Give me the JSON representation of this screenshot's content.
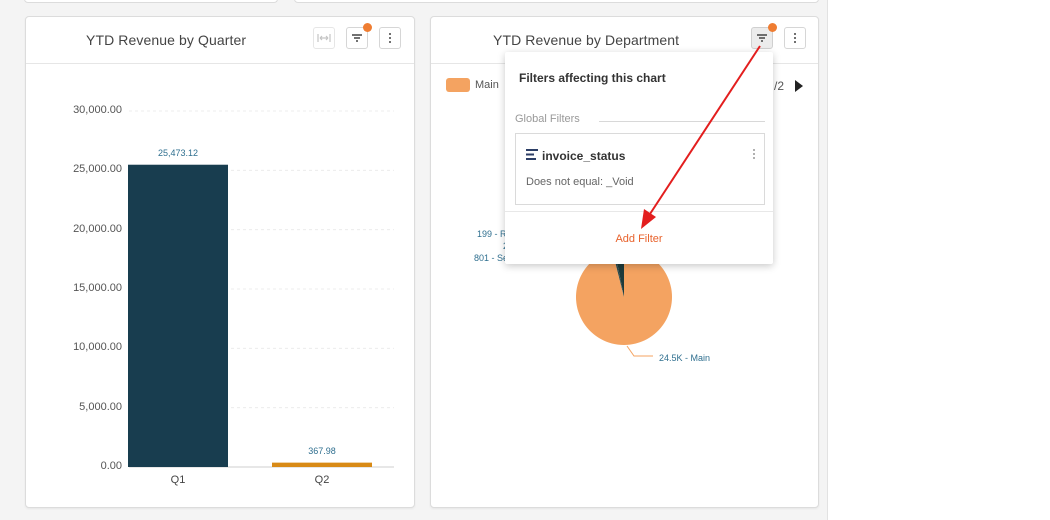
{
  "colors": {
    "q1_bar": "#183d4f",
    "q2_bar": "#d88a16",
    "pie_main": "#f4a361",
    "pie_other": "#2e4a4a",
    "accent": "#ef7d32",
    "add_filter": "#e8622c",
    "arrow": "#e31e1e"
  },
  "left_card": {
    "title": "YTD Revenue by Quarter",
    "icons": [
      "expand-icon",
      "filter-icon",
      "kebab-icon"
    ]
  },
  "right_card": {
    "title": "YTD Revenue by Department",
    "legend_label": "Main",
    "page_indicator": "/2",
    "icons": [
      "filter-icon",
      "kebab-icon",
      "next-page-icon"
    ]
  },
  "chart_data": [
    {
      "type": "bar",
      "title": "YTD Revenue by Quarter",
      "categories": [
        "Q1",
        "Q2"
      ],
      "values": [
        25473.12,
        367.98
      ],
      "data_labels": [
        "25,473.12",
        "367.98"
      ],
      "ylim": [
        0,
        30000
      ],
      "yticks": [
        "0.00",
        "5,000.00",
        "10,000.00",
        "15,000.00",
        "20,000.00",
        "25,000.00",
        "30,000.00"
      ],
      "grid": true
    },
    {
      "type": "pie",
      "title": "YTD Revenue by Department",
      "slices": [
        {
          "label": "24.5K - Main",
          "value": 24500
        },
        {
          "label": "199 - R",
          "value": 199
        },
        {
          "label": "2",
          "value": 2
        },
        {
          "label": "801 - Se",
          "value": 801
        }
      ],
      "legend": [
        "Main"
      ],
      "legend_position": "top-left"
    }
  ],
  "popover": {
    "title": "Filters affecting this chart",
    "section": "Global Filters",
    "filter_name": "invoice_status",
    "filter_condition": "Does not equal: _Void",
    "add_filter_label": "Add Filter"
  }
}
